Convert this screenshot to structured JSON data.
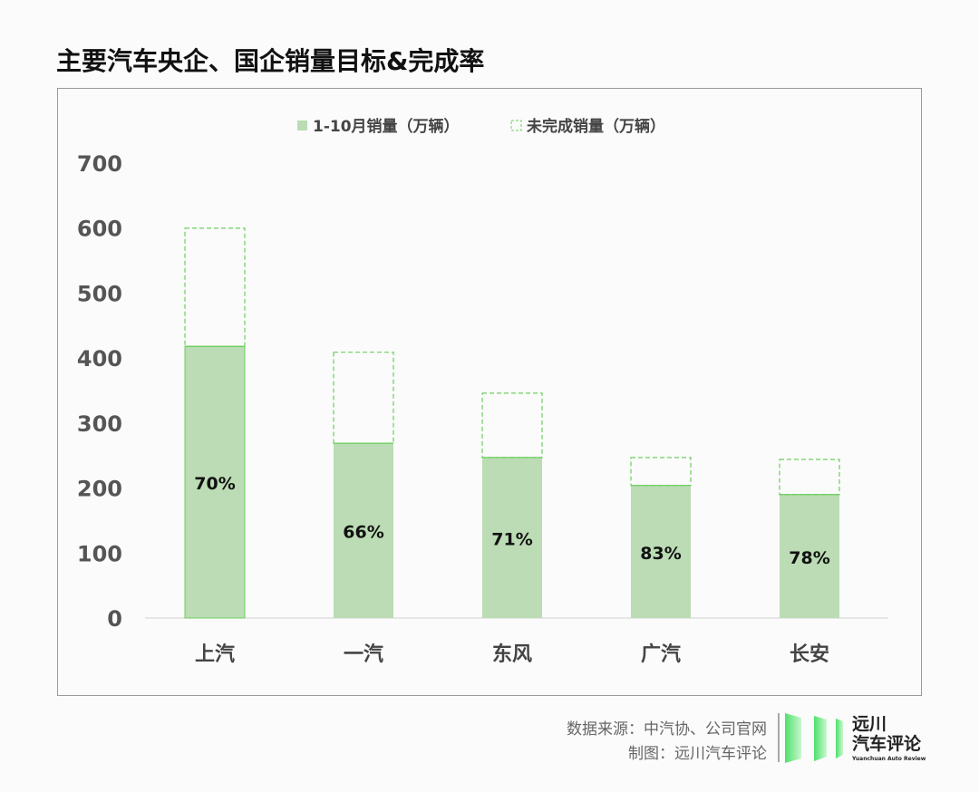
{
  "title": "主要汽车央企、国企销量目标&完成率",
  "chart_data": {
    "type": "bar",
    "stacked": true,
    "categories": [
      "上汽",
      "一汽",
      "东风",
      "广汽",
      "长安"
    ],
    "series": [
      {
        "name": "1-10月销量（万辆）",
        "values": [
          418,
          269,
          247,
          204,
          190
        ],
        "color": "#bbdcb4",
        "style": "solid"
      },
      {
        "name": "未完成销量（万辆）",
        "values": [
          182,
          140,
          99,
          43,
          54
        ],
        "color": "#6ccf5e",
        "style": "dashed"
      }
    ],
    "data_labels": [
      "70%",
      "66%",
      "71%",
      "83%",
      "78%"
    ],
    "ylim": [
      0,
      700
    ],
    "yticks": [
      0,
      100,
      200,
      300,
      400,
      500,
      600,
      700
    ],
    "grid": false,
    "legend_position": "top"
  },
  "footer": {
    "source": "数据来源：中汽协、公司官网",
    "made_by": "制图：远川汽车评论"
  },
  "logo": {
    "line1": "远川",
    "line2": "汽车评论",
    "en": "Yuanchuan Auto Review",
    "color": "#4ee06a"
  }
}
